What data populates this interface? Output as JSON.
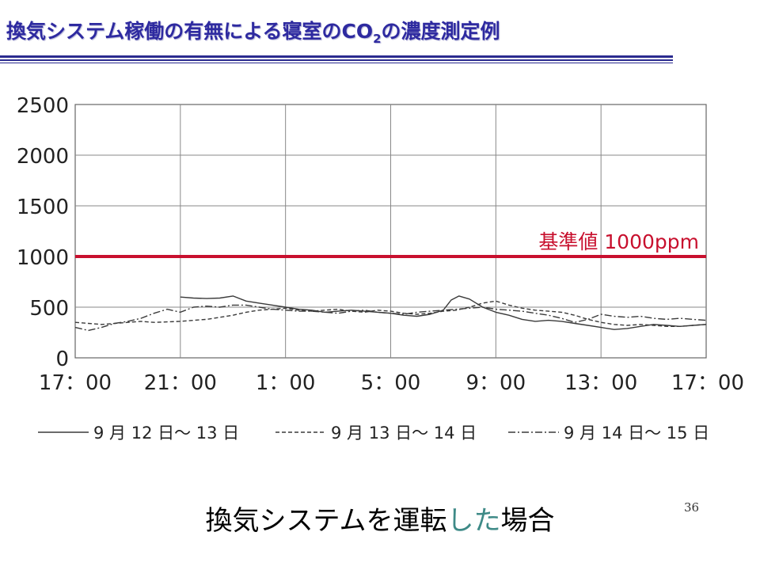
{
  "slide": {
    "title_main": "換気システム稼働の有無による寝室のCO",
    "title_sub": "2",
    "title_end": "の濃度測定例",
    "caption_before": "換気システムを運転",
    "caption_highlight": "した",
    "caption_after": "場合",
    "page_number": "36"
  },
  "colors": {
    "title": "#2e2aa0",
    "rule": "#2b2b8f",
    "threshold": "#c8102e",
    "series": "#3a3a3a",
    "grid": "#888888",
    "caption_highlight": "#3e8a87"
  },
  "chart_data": {
    "type": "line",
    "title": "",
    "xlabel": "",
    "ylabel": "",
    "x_ticks": [
      "17：00",
      "21：00",
      "1：00",
      "5：00",
      "9：00",
      "13：00",
      "17：00"
    ],
    "x_range_hours": [
      0,
      24
    ],
    "ylim": [
      0,
      2500
    ],
    "y_ticks": [
      0,
      500,
      1000,
      1500,
      2000,
      2500
    ],
    "grid": true,
    "legend_position": "bottom",
    "threshold": {
      "label": "基準値 1000ppm",
      "value": 1000
    },
    "series": [
      {
        "name": "9 月 12 日〜 13 日",
        "dash": "solid",
        "x": [
          4,
          4.5,
          5,
          5.5,
          6,
          6.5,
          7,
          7.5,
          8,
          8.5,
          9,
          9.5,
          10,
          10.5,
          11,
          11.5,
          12,
          12.5,
          13,
          13.5,
          14,
          14.3,
          14.6,
          15,
          15.5,
          16,
          16.5,
          17,
          17.5,
          18,
          18.5,
          19,
          19.5,
          20,
          20.5,
          21,
          21.5,
          22,
          22.5,
          23,
          23.5,
          24
        ],
        "y": [
          600,
          590,
          585,
          590,
          610,
          560,
          540,
          520,
          500,
          480,
          470,
          450,
          460,
          470,
          460,
          450,
          440,
          420,
          410,
          430,
          470,
          570,
          610,
          580,
          500,
          450,
          420,
          380,
          360,
          370,
          360,
          340,
          320,
          300,
          280,
          290,
          310,
          330,
          320,
          310,
          320,
          330
        ]
      },
      {
        "name": "9 月 13 日〜 14 日",
        "dash": "dashed",
        "x": [
          0,
          0.5,
          1,
          1.5,
          2,
          2.5,
          3,
          3.5,
          4,
          4.5,
          5,
          5.5,
          6,
          6.5,
          7,
          7.5,
          8,
          8.5,
          9,
          9.5,
          10,
          10.5,
          11,
          11.5,
          12,
          12.5,
          13,
          13.5,
          14,
          14.5,
          15,
          15.5,
          16,
          16.5,
          17,
          17.5,
          18,
          18.5,
          19,
          19.5,
          20,
          20.5,
          21,
          21.5,
          22,
          22.5,
          23,
          23.5,
          24
        ],
        "y": [
          350,
          340,
          330,
          340,
          350,
          360,
          350,
          355,
          360,
          370,
          380,
          400,
          420,
          450,
          470,
          480,
          490,
          470,
          460,
          470,
          480,
          460,
          450,
          470,
          460,
          440,
          430,
          440,
          460,
          470,
          500,
          540,
          560,
          520,
          490,
          470,
          460,
          450,
          420,
          380,
          350,
          330,
          320,
          330,
          320,
          310,
          310,
          320,
          330
        ]
      },
      {
        "name": "9 月 14 日〜 15 日",
        "dash": "dashdot",
        "x": [
          0,
          0.5,
          1,
          1.5,
          2,
          2.5,
          3,
          3.5,
          4,
          4.5,
          5,
          5.5,
          6,
          6.5,
          7,
          7.5,
          8,
          8.5,
          9,
          9.5,
          10,
          10.5,
          11,
          11.5,
          12,
          12.5,
          13,
          13.5,
          14,
          14.5,
          15,
          15.5,
          16,
          16.5,
          17,
          17.5,
          18,
          18.5,
          19,
          19.5,
          20,
          20.5,
          21,
          21.5,
          22,
          22.5,
          23,
          23.5,
          24
        ],
        "y": [
          300,
          270,
          300,
          340,
          360,
          390,
          440,
          480,
          450,
          500,
          510,
          500,
          520,
          520,
          500,
          480,
          470,
          460,
          460,
          450,
          440,
          460,
          470,
          450,
          440,
          430,
          450,
          460,
          470,
          480,
          490,
          500,
          480,
          470,
          460,
          440,
          420,
          390,
          350,
          380,
          430,
          410,
          400,
          410,
          390,
          380,
          390,
          380,
          370
        ]
      }
    ]
  }
}
